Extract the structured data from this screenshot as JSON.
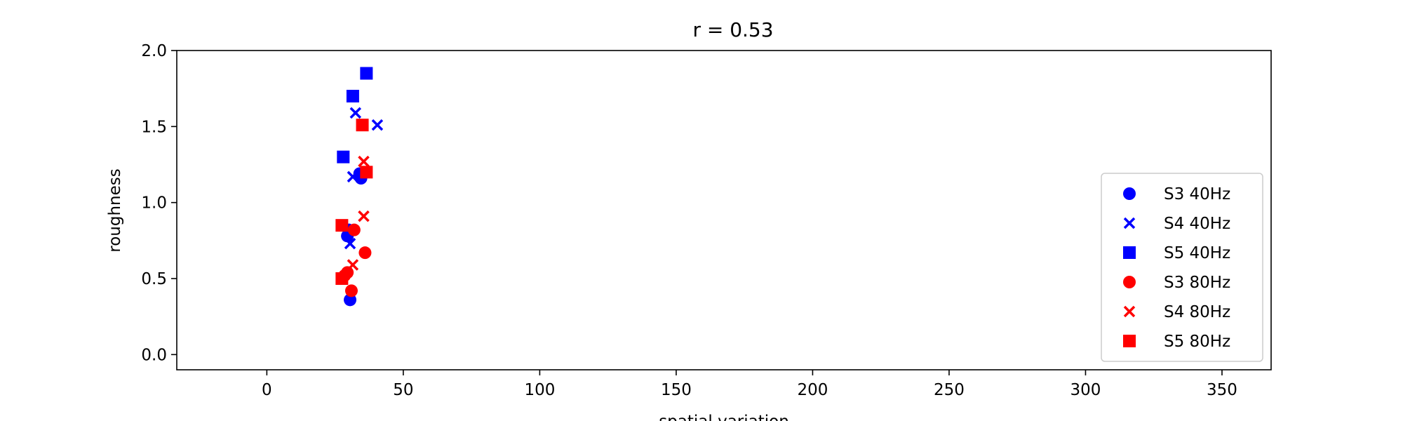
{
  "chart_data": {
    "type": "scatter",
    "title": "r = 0.53",
    "xlabel": "spatial variation",
    "ylabel": "roughness",
    "xlim": [
      -33,
      368
    ],
    "ylim": [
      -0.1,
      2.0
    ],
    "xticks": [
      "0",
      "50",
      "100",
      "150",
      "200",
      "250",
      "300",
      "350"
    ],
    "xtick_values": [
      0,
      50,
      100,
      150,
      200,
      250,
      300,
      350
    ],
    "yticks": [
      "0.0",
      "0.5",
      "1.0",
      "1.5",
      "2.0"
    ],
    "ytick_values": [
      0.0,
      0.5,
      1.0,
      1.5,
      2.0
    ],
    "grid": false,
    "legend_position": "lower-right",
    "series": [
      {
        "name": "S3 40Hz",
        "color": "#0000ff",
        "marker": "circle",
        "points": [
          [
            30.5,
            0.36
          ],
          [
            30.0,
            0.82
          ],
          [
            29.5,
            0.78
          ],
          [
            34.0,
            1.19
          ],
          [
            34.5,
            1.16
          ]
        ]
      },
      {
        "name": "S4 40Hz",
        "color": "#0000ff",
        "marker": "x",
        "points": [
          [
            30.5,
            0.73
          ],
          [
            31.5,
            1.17
          ],
          [
            32.5,
            1.59
          ],
          [
            40.5,
            1.51
          ]
        ]
      },
      {
        "name": "S5 40Hz",
        "color": "#0000ff",
        "marker": "square",
        "points": [
          [
            28.0,
            1.3
          ],
          [
            31.5,
            1.7
          ],
          [
            36.5,
            1.85
          ]
        ]
      },
      {
        "name": "S3 80Hz",
        "color": "#ff0000",
        "marker": "circle",
        "points": [
          [
            28.5,
            0.52
          ],
          [
            29.5,
            0.54
          ],
          [
            31.0,
            0.42
          ],
          [
            32.0,
            0.82
          ],
          [
            36.0,
            0.67
          ]
        ]
      },
      {
        "name": "S4 80Hz",
        "color": "#ff0000",
        "marker": "x",
        "points": [
          [
            31.5,
            0.59
          ],
          [
            35.5,
            0.91
          ],
          [
            35.5,
            1.27
          ]
        ]
      },
      {
        "name": "S5 80Hz",
        "color": "#ff0000",
        "marker": "square",
        "points": [
          [
            27.5,
            0.5
          ],
          [
            27.5,
            0.85
          ],
          [
            35.0,
            1.51
          ],
          [
            36.5,
            1.2
          ]
        ]
      }
    ]
  }
}
